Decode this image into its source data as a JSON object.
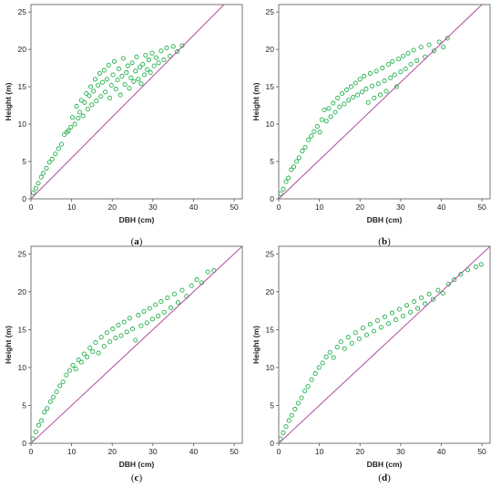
{
  "chart_data": [
    {
      "type": "scatter",
      "panel_label": "a",
      "xlabel": "DBH (cm)",
      "ylabel": "Height (m)",
      "xlim": [
        0,
        52
      ],
      "ylim": [
        0,
        26
      ],
      "xticks": [
        "0",
        "10",
        "20",
        "30",
        "40",
        "50"
      ],
      "yticks": [
        "0",
        "5",
        "10",
        "15",
        "20",
        "25"
      ],
      "grid": false,
      "points": [
        [
          0.6,
          0.8
        ],
        [
          1.2,
          1.4
        ],
        [
          1.8,
          2.1
        ],
        [
          2.5,
          2.9
        ],
        [
          3.0,
          3.4
        ],
        [
          3.8,
          4.1
        ],
        [
          4.5,
          4.9
        ],
        [
          5.2,
          5.3
        ],
        [
          6.0,
          6.0
        ],
        [
          6.8,
          6.7
        ],
        [
          7.5,
          7.3
        ],
        [
          8.2,
          8.6
        ],
        [
          8.8,
          8.9
        ],
        [
          9.2,
          9.1
        ],
        [
          9.8,
          9.6
        ],
        [
          10.2,
          10.9
        ],
        [
          10.8,
          10.0
        ],
        [
          11.2,
          12.4
        ],
        [
          11.6,
          10.8
        ],
        [
          12.0,
          11.6
        ],
        [
          12.4,
          13.2
        ],
        [
          12.8,
          11.1
        ],
        [
          13.2,
          12.9
        ],
        [
          13.6,
          14.1
        ],
        [
          14.0,
          12.0
        ],
        [
          14.3,
          13.8
        ],
        [
          14.7,
          15.0
        ],
        [
          15.0,
          12.6
        ],
        [
          15.4,
          14.4
        ],
        [
          15.8,
          16.0
        ],
        [
          16.1,
          13.1
        ],
        [
          16.5,
          15.2
        ],
        [
          16.9,
          16.8
        ],
        [
          17.2,
          13.7
        ],
        [
          17.6,
          15.6
        ],
        [
          18.0,
          17.2
        ],
        [
          18.3,
          14.3
        ],
        [
          18.7,
          16.0
        ],
        [
          19.1,
          17.9
        ],
        [
          19.4,
          13.5
        ],
        [
          19.8,
          15.2
        ],
        [
          20.2,
          16.6
        ],
        [
          20.5,
          18.4
        ],
        [
          20.9,
          14.7
        ],
        [
          21.3,
          15.9
        ],
        [
          21.6,
          17.4
        ],
        [
          22.0,
          13.9
        ],
        [
          22.4,
          16.4
        ],
        [
          22.7,
          18.8
        ],
        [
          23.1,
          15.3
        ],
        [
          23.5,
          16.9
        ],
        [
          23.8,
          17.8
        ],
        [
          24.2,
          14.8
        ],
        [
          24.6,
          16.2
        ],
        [
          24.9,
          18.2
        ],
        [
          25.3,
          15.7
        ],
        [
          25.7,
          17.1
        ],
        [
          26.0,
          19.0
        ],
        [
          26.4,
          16.0
        ],
        [
          26.8,
          17.6
        ],
        [
          27.1,
          15.4
        ],
        [
          27.5,
          18.0
        ],
        [
          27.9,
          16.6
        ],
        [
          28.2,
          19.2
        ],
        [
          28.6,
          17.3
        ],
        [
          29.0,
          18.6
        ],
        [
          29.4,
          16.9
        ],
        [
          29.8,
          19.5
        ],
        [
          30.3,
          17.8
        ],
        [
          30.8,
          18.9
        ],
        [
          31.4,
          18.2
        ],
        [
          32.0,
          19.8
        ],
        [
          32.7,
          18.6
        ],
        [
          33.4,
          20.2
        ],
        [
          34.2,
          19.1
        ],
        [
          35.0,
          20.4
        ],
        [
          36.0,
          19.7
        ],
        [
          37.2,
          20.5
        ]
      ],
      "fit": [
        [
          0,
          0
        ],
        [
          47.5,
          26
        ]
      ]
    },
    {
      "type": "scatter",
      "panel_label": "b",
      "xlabel": "DBH (cm)",
      "ylabel": "Height (m)",
      "xlim": [
        0,
        52
      ],
      "ylim": [
        0,
        26
      ],
      "xticks": [
        "0",
        "10",
        "20",
        "30",
        "40",
        "50"
      ],
      "yticks": [
        "0",
        "5",
        "10",
        "15",
        "20",
        "25"
      ],
      "grid": false,
      "points": [
        [
          0.5,
          0.7
        ],
        [
          1.1,
          1.3
        ],
        [
          1.8,
          2.3
        ],
        [
          2.4,
          2.8
        ],
        [
          3.1,
          3.9
        ],
        [
          3.7,
          4.3
        ],
        [
          4.4,
          5.0
        ],
        [
          5.0,
          5.5
        ],
        [
          5.8,
          6.4
        ],
        [
          6.5,
          6.9
        ],
        [
          7.3,
          7.9
        ],
        [
          8.0,
          8.4
        ],
        [
          8.7,
          9.0
        ],
        [
          9.5,
          9.7
        ],
        [
          10.1,
          8.9
        ],
        [
          10.6,
          10.6
        ],
        [
          11.2,
          11.9
        ],
        [
          11.7,
          10.4
        ],
        [
          12.3,
          12.1
        ],
        [
          12.8,
          11.0
        ],
        [
          13.4,
          12.8
        ],
        [
          13.9,
          11.6
        ],
        [
          14.5,
          13.5
        ],
        [
          15.0,
          12.3
        ],
        [
          15.6,
          14.1
        ],
        [
          16.1,
          12.7
        ],
        [
          16.7,
          14.6
        ],
        [
          17.2,
          13.2
        ],
        [
          17.8,
          15.0
        ],
        [
          18.3,
          13.6
        ],
        [
          18.9,
          15.5
        ],
        [
          19.4,
          13.9
        ],
        [
          20.0,
          16.0
        ],
        [
          20.5,
          14.3
        ],
        [
          21.0,
          16.4
        ],
        [
          21.5,
          14.7
        ],
        [
          22.0,
          12.9
        ],
        [
          22.5,
          16.8
        ],
        [
          23.0,
          15.1
        ],
        [
          23.5,
          13.5
        ],
        [
          24.0,
          17.1
        ],
        [
          24.5,
          15.4
        ],
        [
          25.0,
          13.9
        ],
        [
          25.5,
          17.5
        ],
        [
          26.0,
          15.8
        ],
        [
          26.5,
          14.4
        ],
        [
          27.0,
          18.0
        ],
        [
          27.5,
          16.2
        ],
        [
          28.0,
          18.4
        ],
        [
          28.5,
          16.6
        ],
        [
          29.0,
          15.0
        ],
        [
          29.5,
          18.7
        ],
        [
          30.0,
          17.0
        ],
        [
          30.6,
          19.1
        ],
        [
          31.2,
          17.4
        ],
        [
          31.8,
          19.5
        ],
        [
          32.5,
          18.0
        ],
        [
          33.2,
          19.9
        ],
        [
          34.0,
          18.5
        ],
        [
          35.0,
          20.3
        ],
        [
          36.0,
          19.0
        ],
        [
          37.0,
          20.6
        ],
        [
          38.2,
          19.8
        ],
        [
          39.5,
          21.0
        ],
        [
          40.5,
          20.3
        ],
        [
          41.5,
          21.5
        ]
      ],
      "fit": [
        [
          0,
          0
        ],
        [
          50,
          26
        ]
      ]
    },
    {
      "type": "scatter",
      "panel_label": "c",
      "xlabel": "DBH (cm)",
      "ylabel": "Height (m)",
      "xlim": [
        0,
        52
      ],
      "ylim": [
        0,
        26
      ],
      "xticks": [
        "0",
        "10",
        "20",
        "30",
        "40",
        "50"
      ],
      "yticks": [
        "0",
        "5",
        "10",
        "15",
        "20",
        "25"
      ],
      "grid": false,
      "points": [
        [
          0.5,
          0.6
        ],
        [
          1.2,
          1.5
        ],
        [
          1.9,
          2.4
        ],
        [
          2.6,
          3.0
        ],
        [
          3.3,
          4.1
        ],
        [
          4.0,
          4.6
        ],
        [
          4.8,
          5.5
        ],
        [
          5.5,
          6.1
        ],
        [
          6.3,
          6.8
        ],
        [
          7.1,
          7.6
        ],
        [
          7.9,
          8.1
        ],
        [
          8.7,
          9.0
        ],
        [
          9.5,
          9.6
        ],
        [
          10.3,
          10.3
        ],
        [
          11.0,
          9.8
        ],
        [
          11.7,
          11.0
        ],
        [
          12.4,
          10.7
        ],
        [
          13.1,
          11.8
        ],
        [
          13.8,
          11.4
        ],
        [
          14.5,
          12.6
        ],
        [
          15.2,
          12.1
        ],
        [
          15.9,
          13.3
        ],
        [
          16.6,
          11.9
        ],
        [
          17.3,
          14.0
        ],
        [
          18.0,
          12.8
        ],
        [
          18.7,
          14.6
        ],
        [
          19.4,
          13.4
        ],
        [
          20.1,
          15.1
        ],
        [
          20.8,
          13.9
        ],
        [
          21.5,
          15.6
        ],
        [
          22.2,
          14.2
        ],
        [
          22.9,
          16.0
        ],
        [
          23.6,
          14.7
        ],
        [
          24.3,
          16.5
        ],
        [
          25.0,
          15.1
        ],
        [
          25.7,
          13.6
        ],
        [
          26.4,
          16.9
        ],
        [
          27.1,
          15.5
        ],
        [
          27.8,
          17.4
        ],
        [
          28.5,
          15.9
        ],
        [
          29.2,
          17.8
        ],
        [
          29.9,
          16.4
        ],
        [
          30.6,
          18.3
        ],
        [
          31.3,
          16.8
        ],
        [
          32.0,
          18.7
        ],
        [
          32.8,
          17.3
        ],
        [
          33.6,
          19.2
        ],
        [
          34.4,
          17.9
        ],
        [
          35.3,
          19.7
        ],
        [
          36.2,
          18.6
        ],
        [
          37.2,
          20.2
        ],
        [
          38.3,
          19.4
        ],
        [
          39.5,
          20.8
        ],
        [
          40.8,
          21.6
        ],
        [
          42.0,
          21.2
        ],
        [
          43.5,
          22.6
        ],
        [
          45.0,
          22.8
        ]
      ],
      "fit": [
        [
          0,
          0
        ],
        [
          52,
          26
        ]
      ]
    },
    {
      "type": "scatter",
      "panel_label": "d",
      "xlabel": "DBH (cm)",
      "ylabel": "Height (m)",
      "xlim": [
        0,
        52
      ],
      "ylim": [
        0,
        26
      ],
      "xticks": [
        "0",
        "10",
        "20",
        "30",
        "40",
        "50"
      ],
      "yticks": [
        "0",
        "5",
        "10",
        "15",
        "20",
        "25"
      ],
      "grid": false,
      "points": [
        [
          0.4,
          0.6
        ],
        [
          1.1,
          1.4
        ],
        [
          1.8,
          2.2
        ],
        [
          2.5,
          3.0
        ],
        [
          3.2,
          3.7
        ],
        [
          4.0,
          4.5
        ],
        [
          4.8,
          5.3
        ],
        [
          5.6,
          6.0
        ],
        [
          6.4,
          6.9
        ],
        [
          7.2,
          7.5
        ],
        [
          8.1,
          8.4
        ],
        [
          9.0,
          9.2
        ],
        [
          9.9,
          10.0
        ],
        [
          10.8,
          10.6
        ],
        [
          11.7,
          11.4
        ],
        [
          12.6,
          12.0
        ],
        [
          13.5,
          11.3
        ],
        [
          14.4,
          12.7
        ],
        [
          15.3,
          13.4
        ],
        [
          16.2,
          12.5
        ],
        [
          17.1,
          14.0
        ],
        [
          18.0,
          13.2
        ],
        [
          18.9,
          14.6
        ],
        [
          19.8,
          13.8
        ],
        [
          20.7,
          15.2
        ],
        [
          21.6,
          14.3
        ],
        [
          22.5,
          15.7
        ],
        [
          23.4,
          14.8
        ],
        [
          24.3,
          16.2
        ],
        [
          25.2,
          15.3
        ],
        [
          26.1,
          16.7
        ],
        [
          27.0,
          15.8
        ],
        [
          27.9,
          17.2
        ],
        [
          28.8,
          16.3
        ],
        [
          29.7,
          17.7
        ],
        [
          30.6,
          16.8
        ],
        [
          31.5,
          18.2
        ],
        [
          32.4,
          17.3
        ],
        [
          33.3,
          18.7
        ],
        [
          34.2,
          17.8
        ],
        [
          35.1,
          19.2
        ],
        [
          36.0,
          18.4
        ],
        [
          37.0,
          19.7
        ],
        [
          38.0,
          19.0
        ],
        [
          39.2,
          20.2
        ],
        [
          40.4,
          19.8
        ],
        [
          41.8,
          21.0
        ],
        [
          43.2,
          21.6
        ],
        [
          44.8,
          22.3
        ],
        [
          46.5,
          22.9
        ],
        [
          48.5,
          23.3
        ],
        [
          49.8,
          23.6
        ]
      ],
      "fit": [
        [
          0,
          0
        ],
        [
          52,
          26
        ]
      ]
    }
  ],
  "colors": {
    "points": "#22b04c",
    "fit_line": "#b04a9c",
    "axis": "#555555"
  }
}
